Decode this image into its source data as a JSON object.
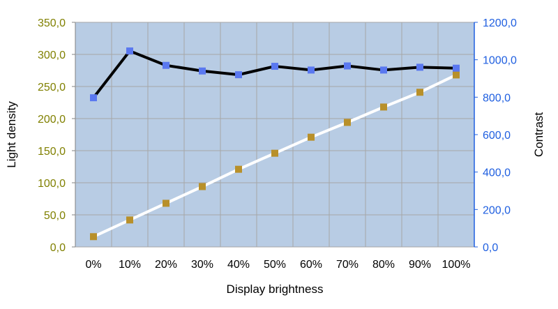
{
  "chart_data": {
    "type": "line",
    "xlabel": "Display brightness",
    "ylabel_left": "Light density",
    "ylabel_right": "Contrast",
    "categories": [
      "0%",
      "10%",
      "20%",
      "30%",
      "40%",
      "50%",
      "60%",
      "70%",
      "80%",
      "90%",
      "100%"
    ],
    "y_left": {
      "range": [
        0,
        350
      ],
      "ticks": [
        "0,0",
        "50,0",
        "100,0",
        "150,0",
        "200,0",
        "250,0",
        "300,0",
        "350,0"
      ],
      "color": "#808000"
    },
    "y_right": {
      "range": [
        0,
        1200
      ],
      "ticks": [
        "0,0",
        "200,0",
        "400,0",
        "600,0",
        "800,0",
        "1000,0",
        "1200,0"
      ],
      "color": "#1f5fe0"
    },
    "grid": true,
    "plot_background": "#b8cce4",
    "series": [
      {
        "axis": "left",
        "line_color": "#ffffff",
        "marker_color": "#b8902a",
        "values": [
          16,
          42,
          68,
          94,
          121,
          146,
          171,
          194,
          218,
          241,
          268
        ]
      },
      {
        "axis": "right",
        "line_color": "#000000",
        "marker_color": "#5a78f0",
        "values": [
          797,
          1047,
          970,
          940,
          920,
          965,
          945,
          967,
          945,
          960,
          955
        ]
      }
    ]
  }
}
